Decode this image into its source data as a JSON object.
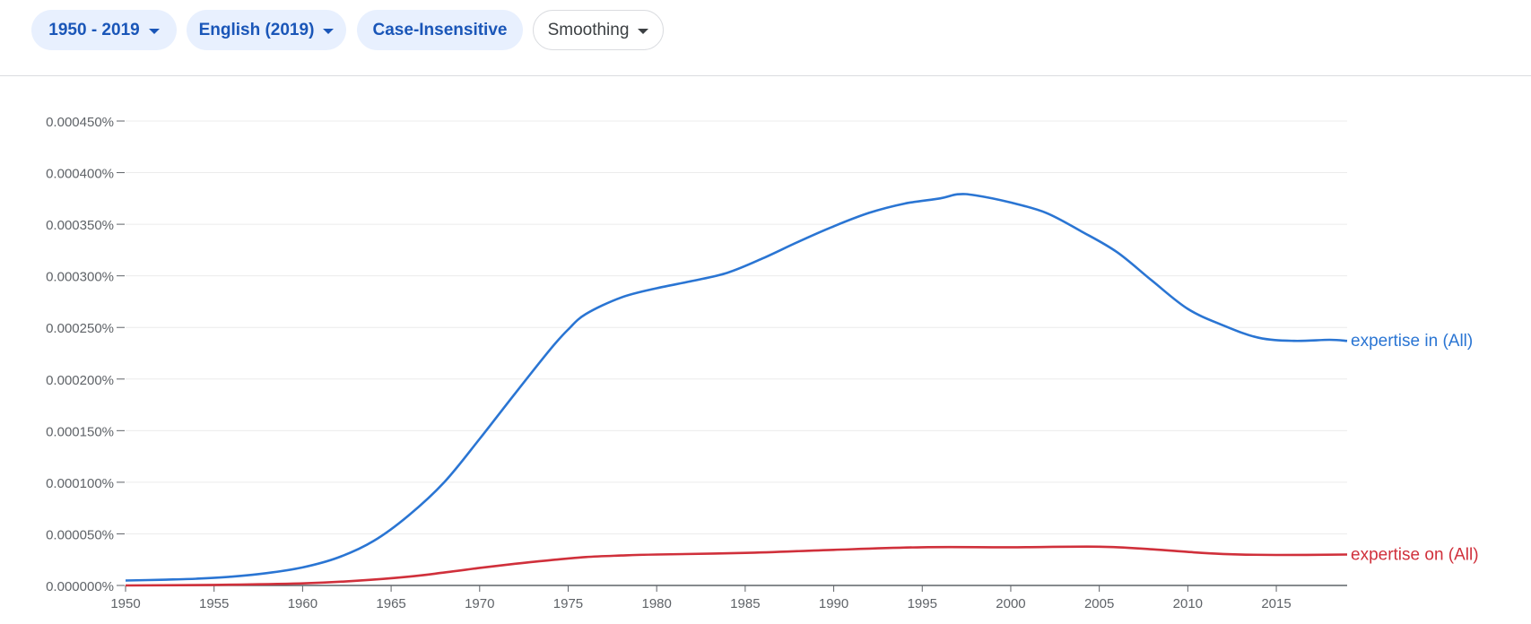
{
  "toolbar": {
    "year_range": "1950 - 2019",
    "corpus": "English (2019)",
    "case": "Case-Insensitive",
    "smoothing": "Smoothing"
  },
  "colors": {
    "chip_text": "#1a56b8",
    "chip_bg": "#e8f0fe",
    "series_blue": "#2a75d3",
    "series_red": "#d0303b",
    "grid": "#ececec",
    "axis": "#5f6368"
  },
  "chart_data": {
    "type": "line",
    "xlim": [
      1950,
      2019
    ],
    "ylim": [
      0,
      0.00045
    ],
    "x_ticks": [
      1950,
      1955,
      1960,
      1965,
      1970,
      1975,
      1980,
      1985,
      1990,
      1995,
      2000,
      2005,
      2010,
      2015
    ],
    "y_ticks": [
      0,
      5e-05,
      0.0001,
      0.00015,
      0.0002,
      0.00025,
      0.0003,
      0.00035,
      0.0004,
      0.00045
    ],
    "y_tick_labels": [
      "0.000000%",
      "0.000050%",
      "0.000100%",
      "0.000150%",
      "0.000200%",
      "0.000250%",
      "0.000300%",
      "0.000350%",
      "0.000400%",
      "0.000450%"
    ],
    "grid": true,
    "legend": "end-of-line labels",
    "series": [
      {
        "name": "expertise in (All)",
        "color": "#2a75d3",
        "x": [
          1950,
          1952,
          1954,
          1956,
          1958,
          1960,
          1962,
          1964,
          1966,
          1968,
          1970,
          1972,
          1974,
          1975,
          1976,
          1978,
          1980,
          1982,
          1984,
          1986,
          1988,
          1990,
          1992,
          1994,
          1996,
          1997,
          1998,
          2000,
          2002,
          2004,
          2006,
          2008,
          2010,
          2012,
          2014,
          2016,
          2018,
          2019
        ],
        "values": [
          4.8e-06,
          5.5e-06,
          6.5e-06,
          8.5e-06,
          1.2e-05,
          1.75e-05,
          2.7e-05,
          4.3e-05,
          6.8e-05,
          0.0001,
          0.000142,
          0.000186,
          0.000229,
          0.000248,
          0.000263,
          0.000279,
          0.000288,
          0.000295,
          0.000303,
          0.000317,
          0.000333,
          0.000348,
          0.000361,
          0.00037,
          0.000375,
          0.000379,
          0.000378,
          0.000371,
          0.000361,
          0.000343,
          0.000323,
          0.000295,
          0.000268,
          0.000252,
          0.00024,
          0.000237,
          0.000238,
          0.000237
        ]
      },
      {
        "name": "expertise on (All)",
        "color": "#d0303b",
        "x": [
          1950,
          1955,
          1960,
          1963,
          1966,
          1968,
          1970,
          1972,
          1974,
          1976,
          1978,
          1980,
          1985,
          1990,
          1995,
          2000,
          2005,
          2008,
          2010,
          2012,
          2015,
          2019
        ],
        "values": [
          0.0,
          5e-07,
          2e-06,
          4.5e-06,
          8.5e-06,
          1.25e-05,
          1.7e-05,
          2.1e-05,
          2.45e-05,
          2.75e-05,
          2.9e-05,
          3e-05,
          3.15e-05,
          3.45e-05,
          3.7e-05,
          3.7e-05,
          3.75e-05,
          3.5e-05,
          3.25e-05,
          3.05e-05,
          2.95e-05,
          3e-05
        ]
      }
    ]
  }
}
